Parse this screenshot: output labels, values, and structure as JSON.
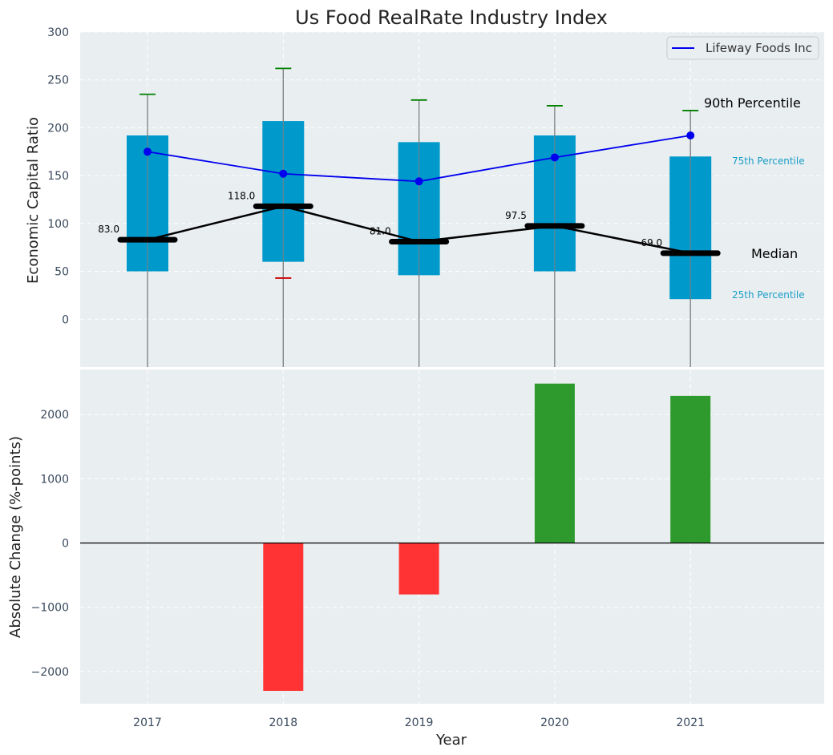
{
  "title": "Us Food RealRate Industry Index",
  "colors": {
    "panel_bg": "#e9eef0",
    "box": "#0099cc",
    "line": "#0000ee",
    "median": "#000000",
    "p90_cap": "#008000",
    "p10_cap": "#cc0000",
    "whisker": "#808080",
    "bar_positive": "#2e9a2e",
    "bar_negative": "#ff3333",
    "annotation_blue": "#1a9ec7"
  },
  "legend": {
    "position": "top-right",
    "label": "Lifeway Foods Inc"
  },
  "annotations": {
    "p90": "90th Percentile",
    "p75": "75th Percentile",
    "median": "Median",
    "p25": "25th Percentile"
  },
  "chart_data": [
    {
      "type": "box",
      "panel": "top",
      "ylabel": "Economic Capital Ratio",
      "ylim": [
        -50,
        300
      ],
      "yticks": [
        0,
        50,
        100,
        150,
        200,
        250,
        300
      ],
      "categories": [
        "2017",
        "2018",
        "2019",
        "2020",
        "2021"
      ],
      "p25": [
        50,
        60,
        46,
        50,
        21
      ],
      "p75": [
        192,
        207,
        185,
        192,
        170
      ],
      "median": [
        83.0,
        118.0,
        81.0,
        97.5,
        69.0
      ],
      "median_labels": [
        "83.0",
        "118.0",
        "81.0",
        "97.5",
        "69.0"
      ],
      "p90": [
        235,
        262,
        229,
        223,
        218
      ],
      "p10": [
        null,
        43,
        null,
        null,
        null
      ],
      "series": [
        {
          "name": "Lifeway Foods Inc",
          "values": [
            175,
            152,
            144,
            169,
            192
          ]
        }
      ],
      "grid": true
    },
    {
      "type": "bar",
      "panel": "bottom",
      "xlabel": "Year",
      "ylabel": "Absolute Change (%-points)",
      "ylim": [
        -2500,
        2700
      ],
      "yticks": [
        -2000,
        -1000,
        0,
        1000,
        2000
      ],
      "ytick_labels": [
        "−2000",
        "−1000",
        "0",
        "1000",
        "2000"
      ],
      "categories": [
        "2017",
        "2018",
        "2019",
        "2020",
        "2021"
      ],
      "values": [
        null,
        -2300,
        -800,
        2480,
        2290
      ],
      "grid": true
    }
  ]
}
